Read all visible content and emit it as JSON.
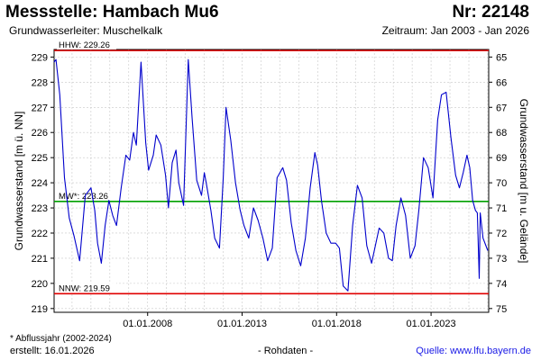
{
  "header": {
    "title": "Messstelle: Hambach Mu6",
    "number": "Nr: 22148",
    "aquifer": "Grundwasserleiter: Muschelkalk",
    "period": "Zeitraum: Jan 2003 - Jan 2026"
  },
  "footer": {
    "footnote": "* Abflussjahr (2002-2024)",
    "created": "erstellt:  16.01.2026",
    "raw_data": "- Rohdaten -",
    "source": "Quelle: www.lfu.bayern.de"
  },
  "colors": {
    "series": "#0000cc",
    "hhw": "#e00000",
    "nnw": "#e00000",
    "mw": "#00a000",
    "grid": "#c8c8c8",
    "source_link": "#1a1ae6"
  },
  "chart_data": {
    "type": "line",
    "ylabel": "Grundwasserstand [m ü. NN]",
    "ylabel_right": "Grundwasserstand [m u. Gelände]",
    "ylim": [
      218.85,
      229.3
    ],
    "ylim_right": [
      75.15,
      64.7
    ],
    "yticks": [
      219,
      220,
      221,
      222,
      223,
      224,
      225,
      226,
      227,
      228,
      229
    ],
    "yticks_right": [
      65,
      66,
      67,
      68,
      69,
      70,
      71,
      72,
      73,
      74,
      75
    ],
    "xlim": [
      2003.05,
      2026.05
    ],
    "xtick_labels": [
      "01.01.2008",
      "01.01.2013",
      "01.01.2018",
      "01.01.2023"
    ],
    "xtick_values": [
      2008,
      2013,
      2018,
      2023
    ],
    "grid": true,
    "reference_lines": [
      {
        "label": "HHW: 229.26",
        "value": 229.26,
        "color": "#e00000"
      },
      {
        "label": "MW*: 223.26",
        "value": 223.26,
        "color": "#00a000"
      },
      {
        "label": "NNW: 219.59",
        "value": 219.59,
        "color": "#e00000"
      }
    ],
    "series": [
      {
        "x": [
          2003.05,
          2003.15,
          2003.35,
          2003.6,
          2003.85,
          2004.1,
          2004.4,
          2004.7,
          2005.0,
          2005.2,
          2005.35,
          2005.55,
          2005.75,
          2005.95,
          2006.15,
          2006.35,
          2006.6,
          2006.85,
          2007.05,
          2007.25,
          2007.4,
          2007.65,
          2007.9,
          2008.05,
          2008.3,
          2008.45,
          2008.7,
          2008.95,
          2009.1,
          2009.3,
          2009.5,
          2009.65,
          2009.9,
          2010.15,
          2010.35,
          2010.6,
          2010.85,
          2011.0,
          2011.1,
          2011.35,
          2011.55,
          2011.8,
          2012.0,
          2012.15,
          2012.4,
          2012.65,
          2012.9,
          2013.1,
          2013.35,
          2013.6,
          2013.85,
          2014.1,
          2014.35,
          2014.6,
          2014.85,
          2015.15,
          2015.35,
          2015.6,
          2015.85,
          2016.1,
          2016.35,
          2016.6,
          2016.85,
          2017.0,
          2017.2,
          2017.45,
          2017.7,
          2017.95,
          2018.15,
          2018.35,
          2018.6,
          2018.85,
          2019.1,
          2019.35,
          2019.6,
          2019.85,
          2020.05,
          2020.25,
          2020.5,
          2020.75,
          2020.95,
          2021.15,
          2021.4,
          2021.65,
          2021.9,
          2022.15,
          2022.35,
          2022.6,
          2022.85,
          2023.1,
          2023.35,
          2023.55,
          2023.8,
          2024.05,
          2024.3,
          2024.5,
          2024.7,
          2024.9,
          2025.05,
          2025.2,
          2025.35,
          2025.45,
          2025.55,
          2025.6,
          2025.75,
          2025.9,
          2026.0
        ],
        "y": [
          228.8,
          228.9,
          227.5,
          224.2,
          222.6,
          221.9,
          220.9,
          223.5,
          223.8,
          222.9,
          221.6,
          220.8,
          222.3,
          223.3,
          222.7,
          222.3,
          223.8,
          225.1,
          224.9,
          226.0,
          225.5,
          228.8,
          225.6,
          224.5,
          225.1,
          225.9,
          225.5,
          224.3,
          223.0,
          224.8,
          225.3,
          224.0,
          223.1,
          228.9,
          226.6,
          224.1,
          223.5,
          224.4,
          224.0,
          222.9,
          221.8,
          221.4,
          224.2,
          227.0,
          225.7,
          224.0,
          222.9,
          222.3,
          221.8,
          223.0,
          222.5,
          221.8,
          220.9,
          221.4,
          224.2,
          224.6,
          224.1,
          222.4,
          221.3,
          220.7,
          221.8,
          223.8,
          225.2,
          224.7,
          223.3,
          222.0,
          221.6,
          221.6,
          221.4,
          219.9,
          219.7,
          222.3,
          223.9,
          223.4,
          221.5,
          220.8,
          221.5,
          222.2,
          222.0,
          221.0,
          220.9,
          222.3,
          223.4,
          222.7,
          221.0,
          221.5,
          222.9,
          225.0,
          224.6,
          223.4,
          226.5,
          227.5,
          227.6,
          225.8,
          224.3,
          223.8,
          224.4,
          225.1,
          224.6,
          223.3,
          222.9,
          222.8,
          220.2,
          222.8,
          221.8,
          221.5,
          221.3
        ]
      }
    ]
  }
}
